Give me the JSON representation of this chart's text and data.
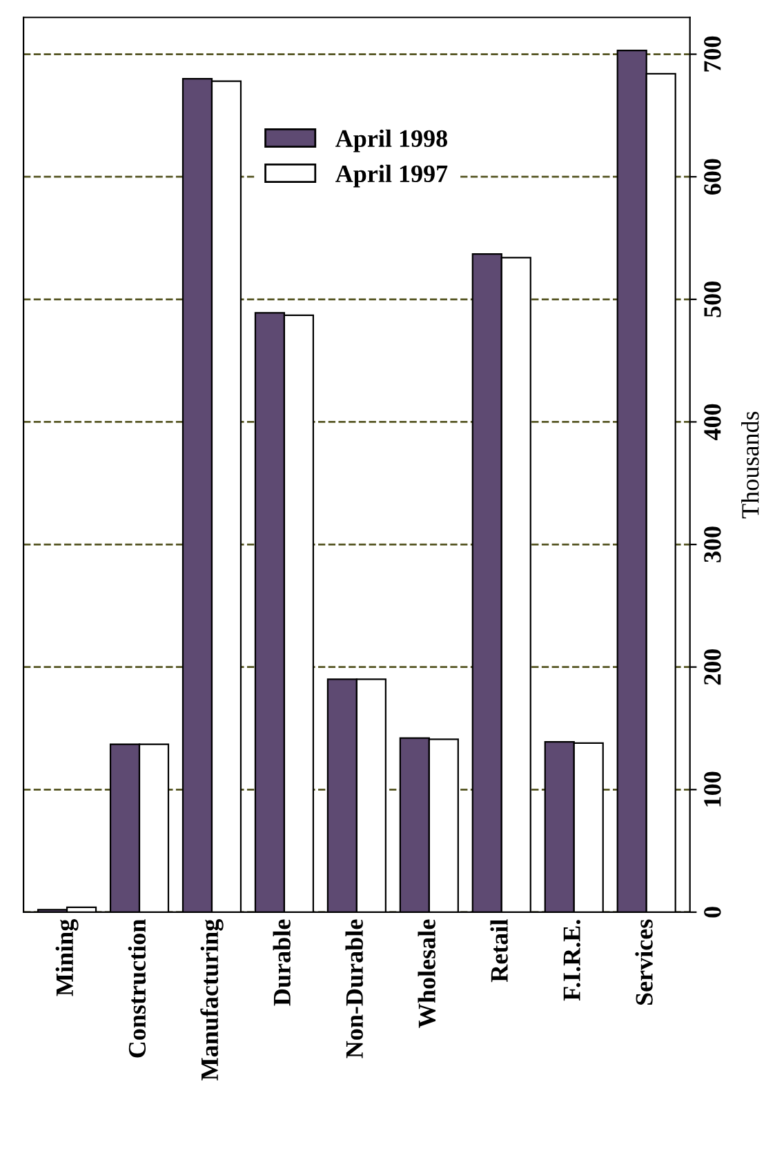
{
  "chart_data": {
    "type": "bar",
    "ylabel": "Thousands",
    "categories": [
      "Mining",
      "Construction",
      "Manufacturing",
      "Durable",
      "Non-Durable",
      "Wholesale",
      "Retail",
      "F.I.R.E.",
      "Services"
    ],
    "series": [
      {
        "name": "April 1998",
        "color": "#5e4a72",
        "values": [
          2,
          137,
          680,
          489,
          190,
          142,
          537,
          139,
          703
        ]
      },
      {
        "name": "April 1997",
        "color": "#ffffff",
        "values": [
          4,
          137,
          678,
          487,
          190,
          141,
          534,
          138,
          684
        ]
      }
    ],
    "ylim": [
      0,
      730
    ],
    "yticks": [
      0,
      100,
      200,
      300,
      400,
      500,
      600,
      700
    ],
    "grid": "y",
    "legend": "top",
    "line_style": "dashed"
  }
}
